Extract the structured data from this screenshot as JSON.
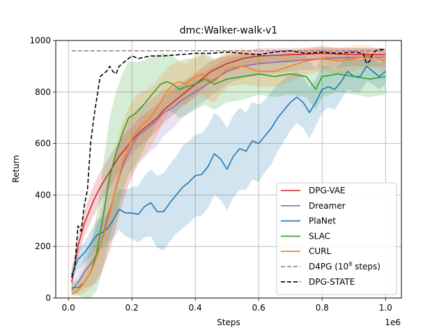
{
  "chart_data": {
    "type": "line",
    "title": "dmc:Walker-walk-v1",
    "xlabel": "Steps",
    "ylabel": "Return",
    "x_offset_label": "1e6",
    "xlim": [
      -0.04,
      1.05
    ],
    "ylim": [
      0,
      1000
    ],
    "xticks": [
      0.0,
      0.2,
      0.4,
      0.6,
      0.8,
      1.0
    ],
    "xtick_labels": [
      "0.0",
      "0.2",
      "0.4",
      "0.6",
      "0.8",
      "1.0"
    ],
    "yticks": [
      0,
      200,
      400,
      600,
      800,
      1000
    ],
    "ytick_labels": [
      "0",
      "200",
      "400",
      "600",
      "800",
      "1000"
    ],
    "grid": true,
    "legend_position": "lower-right",
    "series": [
      {
        "name": "DPG-VAE",
        "color": "#d62728",
        "style": "solid",
        "x": [
          0.01,
          0.03,
          0.05,
          0.08,
          0.1,
          0.12,
          0.14,
          0.16,
          0.18,
          0.2,
          0.22,
          0.25,
          0.28,
          0.3,
          0.33,
          0.36,
          0.4,
          0.45,
          0.5,
          0.55,
          0.6,
          0.7,
          0.8,
          0.9,
          1.0
        ],
        "y": [
          60,
          200,
          290,
          380,
          430,
          470,
          510,
          550,
          580,
          610,
          640,
          670,
          700,
          730,
          760,
          790,
          830,
          880,
          910,
          930,
          940,
          945,
          950,
          945,
          945
        ],
        "band": [
          40,
          40,
          50,
          60,
          60,
          60,
          60,
          60,
          60,
          55,
          55,
          55,
          50,
          50,
          50,
          45,
          45,
          40,
          35,
          30,
          30,
          25,
          25,
          25,
          25
        ]
      },
      {
        "name": "Dreamer",
        "color": "#9467bd",
        "style": "solid",
        "x": [
          0.01,
          0.03,
          0.05,
          0.08,
          0.1,
          0.12,
          0.14,
          0.16,
          0.18,
          0.2,
          0.22,
          0.25,
          0.28,
          0.3,
          0.33,
          0.36,
          0.4,
          0.45,
          0.5,
          0.55,
          0.6,
          0.7,
          0.8,
          0.9,
          1.0
        ],
        "y": [
          30,
          60,
          100,
          150,
          200,
          300,
          380,
          470,
          540,
          590,
          630,
          660,
          690,
          720,
          740,
          770,
          800,
          840,
          880,
          900,
          910,
          920,
          930,
          935,
          935
        ],
        "band": [
          20,
          40,
          60,
          100,
          120,
          150,
          150,
          140,
          130,
          120,
          110,
          100,
          100,
          90,
          80,
          70,
          60,
          55,
          50,
          45,
          45,
          40,
          40,
          35,
          35
        ]
      },
      {
        "name": "PlaNet",
        "color": "#1f77b4",
        "style": "solid",
        "x": [
          0.01,
          0.03,
          0.05,
          0.07,
          0.09,
          0.1,
          0.12,
          0.14,
          0.16,
          0.18,
          0.2,
          0.22,
          0.24,
          0.26,
          0.28,
          0.3,
          0.32,
          0.34,
          0.36,
          0.38,
          0.4,
          0.42,
          0.44,
          0.46,
          0.48,
          0.5,
          0.52,
          0.54,
          0.56,
          0.58,
          0.6,
          0.62,
          0.64,
          0.66,
          0.68,
          0.7,
          0.72,
          0.74,
          0.76,
          0.78,
          0.8,
          0.82,
          0.84,
          0.86,
          0.88,
          0.9,
          0.92,
          0.94,
          0.96,
          0.98,
          1.0
        ],
        "y": [
          90,
          150,
          175,
          210,
          245,
          250,
          265,
          300,
          345,
          330,
          330,
          325,
          355,
          370,
          335,
          335,
          370,
          400,
          430,
          450,
          475,
          480,
          510,
          560,
          540,
          500,
          550,
          580,
          570,
          610,
          600,
          630,
          660,
          700,
          730,
          760,
          780,
          760,
          720,
          760,
          810,
          820,
          810,
          840,
          880,
          860,
          860,
          900,
          880,
          860,
          880
        ],
        "band": [
          30,
          40,
          40,
          50,
          60,
          60,
          60,
          70,
          80,
          90,
          100,
          110,
          120,
          130,
          140,
          150,
          150,
          150,
          160,
          160,
          160,
          160,
          160,
          160,
          160,
          160,
          160,
          160,
          150,
          150,
          150,
          140,
          140,
          130,
          120,
          110,
          100,
          100,
          100,
          90,
          90,
          80,
          80,
          70,
          70,
          60,
          60,
          60,
          50,
          50,
          50
        ]
      },
      {
        "name": "SLAC",
        "color": "#2ca02c",
        "style": "solid",
        "x": [
          0.01,
          0.03,
          0.05,
          0.07,
          0.09,
          0.11,
          0.13,
          0.15,
          0.17,
          0.19,
          0.21,
          0.23,
          0.25,
          0.27,
          0.29,
          0.31,
          0.33,
          0.35,
          0.37,
          0.4,
          0.43,
          0.46,
          0.5,
          0.55,
          0.6,
          0.65,
          0.7,
          0.75,
          0.78,
          0.8,
          0.85,
          0.9,
          0.95,
          1.0
        ],
        "y": [
          40,
          40,
          60,
          100,
          180,
          320,
          470,
          560,
          640,
          700,
          715,
          740,
          770,
          800,
          830,
          840,
          830,
          810,
          820,
          830,
          850,
          830,
          850,
          860,
          870,
          860,
          870,
          860,
          810,
          860,
          870,
          860,
          850,
          860
        ],
        "band": [
          20,
          30,
          60,
          100,
          150,
          200,
          230,
          240,
          230,
          220,
          200,
          180,
          160,
          140,
          120,
          110,
          110,
          110,
          110,
          100,
          100,
          100,
          90,
          90,
          80,
          80,
          80,
          80,
          80,
          80,
          70,
          70,
          70,
          70
        ]
      },
      {
        "name": "CURL",
        "color": "#ff7f0e",
        "style": "solid",
        "x": [
          0.01,
          0.03,
          0.05,
          0.07,
          0.09,
          0.11,
          0.13,
          0.15,
          0.17,
          0.19,
          0.21,
          0.23,
          0.25,
          0.27,
          0.29,
          0.31,
          0.33,
          0.35,
          0.37,
          0.4,
          0.42,
          0.44,
          0.46,
          0.5,
          0.55,
          0.6,
          0.65,
          0.7,
          0.75,
          0.8,
          0.85,
          0.9,
          0.95,
          1.0
        ],
        "y": [
          15,
          30,
          60,
          100,
          160,
          240,
          330,
          430,
          520,
          590,
          640,
          670,
          690,
          720,
          760,
          800,
          830,
          840,
          830,
          860,
          870,
          850,
          840,
          890,
          900,
          880,
          880,
          900,
          920,
          930,
          920,
          930,
          940,
          920
        ],
        "band": [
          10,
          20,
          40,
          60,
          90,
          120,
          150,
          160,
          160,
          150,
          140,
          130,
          120,
          110,
          100,
          90,
          80,
          80,
          80,
          80,
          80,
          80,
          80,
          70,
          70,
          60,
          60,
          60,
          50,
          50,
          50,
          50,
          40,
          40
        ]
      },
      {
        "name": "D4PG (10^8 steps)",
        "color": "#7f7f7f",
        "style": "dashed",
        "x": [
          0.01,
          1.0
        ],
        "y": [
          960,
          960
        ]
      },
      {
        "name": "DPG-STATE",
        "color": "#000000",
        "style": "dashed",
        "x": [
          0.01,
          0.02,
          0.03,
          0.04,
          0.05,
          0.06,
          0.07,
          0.08,
          0.1,
          0.12,
          0.13,
          0.14,
          0.15,
          0.16,
          0.18,
          0.2,
          0.22,
          0.24,
          0.26,
          0.3,
          0.35,
          0.4,
          0.45,
          0.5,
          0.55,
          0.6,
          0.65,
          0.7,
          0.75,
          0.8,
          0.85,
          0.9,
          0.93,
          0.94,
          0.95,
          0.96,
          0.97,
          0.98,
          1.0
        ],
        "y": [
          80,
          120,
          280,
          260,
          360,
          420,
          600,
          700,
          860,
          880,
          900,
          880,
          870,
          900,
          920,
          940,
          930,
          935,
          940,
          940,
          945,
          950,
          950,
          955,
          950,
          945,
          955,
          960,
          950,
          955,
          950,
          955,
          950,
          910,
          920,
          950,
          960,
          965,
          965
        ]
      }
    ],
    "legend": [
      {
        "label": "DPG-VAE",
        "color": "#d62728",
        "style": "solid"
      },
      {
        "label": "Dreamer",
        "color": "#9467bd",
        "style": "solid"
      },
      {
        "label": "PlaNet",
        "color": "#1f77b4",
        "style": "solid"
      },
      {
        "label": "SLAC",
        "color": "#2ca02c",
        "style": "solid"
      },
      {
        "label": "CURL",
        "color": "#ff7f0e",
        "style": "solid"
      },
      {
        "label": "D4PG (10",
        "sup": "8",
        "suffix": " steps)",
        "color": "#7f7f7f",
        "style": "dashed"
      },
      {
        "label": "DPG-STATE",
        "color": "#000000",
        "style": "dashed"
      }
    ]
  }
}
